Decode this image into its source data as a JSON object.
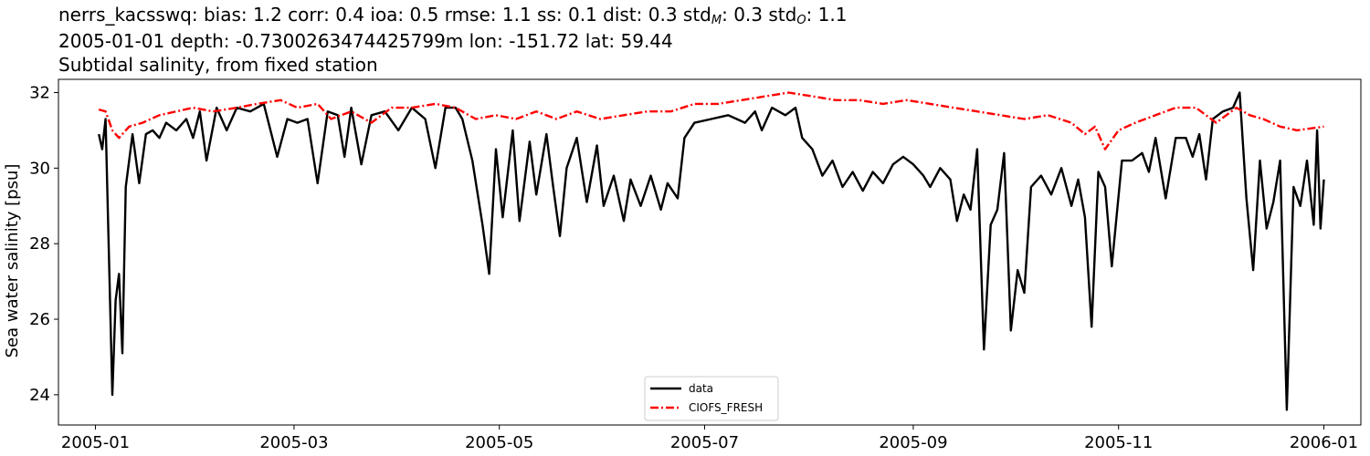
{
  "chart_data": {
    "type": "line",
    "title_lines": {
      "line1": {
        "prefix": "nerrs_kacsswq: bias: 1.2  corr: 0.4  ioa: 0.5  rmse: 1.1  ss: 0.1  dist: 0.3  std",
        "sub1": "M",
        "mid": ": 0.3  std",
        "sub2": "O",
        "suffix": ": 1.1"
      },
      "line2": "2005-01-01 depth: -0.7300263474425799m lon: -151.72 lat: 59.44",
      "line3": "Subtidal salinity, from fixed station"
    },
    "ylabel": "Sea water salinity [psu]",
    "xlabel": "",
    "xlim": [
      "2004-12-21",
      "2006-01-12"
    ],
    "ylim": [
      23.2,
      32.35
    ],
    "xticks": [
      "2005-01",
      "2005-03",
      "2005-05",
      "2005-07",
      "2005-09",
      "2005-11",
      "2006-01"
    ],
    "yticks": [
      24,
      26,
      28,
      30,
      32
    ],
    "grid": false,
    "legend_position": "lower center",
    "series": [
      {
        "name": "data",
        "color": "#000000",
        "style": "solid",
        "points": [
          [
            "2005-01-02",
            30.9
          ],
          [
            "2005-01-03",
            30.5
          ],
          [
            "2005-01-04",
            31.3
          ],
          [
            "2005-01-06",
            24.0
          ],
          [
            "2005-01-07",
            26.5
          ],
          [
            "2005-01-08",
            27.2
          ],
          [
            "2005-01-09",
            25.1
          ],
          [
            "2005-01-10",
            29.5
          ],
          [
            "2005-01-12",
            30.9
          ],
          [
            "2005-01-14",
            29.6
          ],
          [
            "2005-01-16",
            30.9
          ],
          [
            "2005-01-18",
            31.0
          ],
          [
            "2005-01-20",
            30.8
          ],
          [
            "2005-01-22",
            31.2
          ],
          [
            "2005-01-25",
            31.0
          ],
          [
            "2005-01-28",
            31.3
          ],
          [
            "2005-01-30",
            30.8
          ],
          [
            "2005-02-01",
            31.5
          ],
          [
            "2005-02-03",
            30.2
          ],
          [
            "2005-02-06",
            31.6
          ],
          [
            "2005-02-09",
            31.0
          ],
          [
            "2005-02-12",
            31.6
          ],
          [
            "2005-02-16",
            31.5
          ],
          [
            "2005-02-20",
            31.7
          ],
          [
            "2005-02-24",
            30.3
          ],
          [
            "2005-02-27",
            31.3
          ],
          [
            "2005-03-02",
            31.2
          ],
          [
            "2005-03-05",
            31.3
          ],
          [
            "2005-03-08",
            29.6
          ],
          [
            "2005-03-11",
            31.5
          ],
          [
            "2005-03-14",
            31.4
          ],
          [
            "2005-03-16",
            30.3
          ],
          [
            "2005-03-18",
            31.6
          ],
          [
            "2005-03-21",
            30.1
          ],
          [
            "2005-03-24",
            31.4
          ],
          [
            "2005-03-28",
            31.5
          ],
          [
            "2005-04-01",
            31.0
          ],
          [
            "2005-04-05",
            31.6
          ],
          [
            "2005-04-09",
            31.3
          ],
          [
            "2005-04-12",
            30.0
          ],
          [
            "2005-04-15",
            31.6
          ],
          [
            "2005-04-18",
            31.6
          ],
          [
            "2005-04-20",
            31.3
          ],
          [
            "2005-04-23",
            30.2
          ],
          [
            "2005-04-26",
            28.5
          ],
          [
            "2005-04-28",
            27.2
          ],
          [
            "2005-04-30",
            30.5
          ],
          [
            "2005-05-02",
            28.7
          ],
          [
            "2005-05-05",
            31.0
          ],
          [
            "2005-05-07",
            28.6
          ],
          [
            "2005-05-10",
            30.7
          ],
          [
            "2005-05-12",
            29.3
          ],
          [
            "2005-05-15",
            30.9
          ],
          [
            "2005-05-17",
            29.5
          ],
          [
            "2005-05-19",
            28.2
          ],
          [
            "2005-05-21",
            30.0
          ],
          [
            "2005-05-24",
            30.8
          ],
          [
            "2005-05-27",
            29.1
          ],
          [
            "2005-05-30",
            30.6
          ],
          [
            "2005-06-01",
            29.0
          ],
          [
            "2005-06-04",
            29.8
          ],
          [
            "2005-06-07",
            28.6
          ],
          [
            "2005-06-09",
            29.7
          ],
          [
            "2005-06-12",
            29.0
          ],
          [
            "2005-06-15",
            29.8
          ],
          [
            "2005-06-18",
            28.9
          ],
          [
            "2005-06-20",
            29.6
          ],
          [
            "2005-06-23",
            29.2
          ],
          [
            "2005-06-25",
            30.8
          ],
          [
            "2005-06-28",
            31.2
          ],
          [
            "2005-07-03",
            31.3
          ],
          [
            "2005-07-08",
            31.4
          ],
          [
            "2005-07-13",
            31.2
          ],
          [
            "2005-07-16",
            31.5
          ],
          [
            "2005-07-18",
            31.0
          ],
          [
            "2005-07-21",
            31.6
          ],
          [
            "2005-07-25",
            31.4
          ],
          [
            "2005-07-28",
            31.6
          ],
          [
            "2005-07-30",
            30.8
          ],
          [
            "2005-08-02",
            30.5
          ],
          [
            "2005-08-05",
            29.8
          ],
          [
            "2005-08-08",
            30.2
          ],
          [
            "2005-08-11",
            29.5
          ],
          [
            "2005-08-14",
            29.9
          ],
          [
            "2005-08-17",
            29.4
          ],
          [
            "2005-08-20",
            29.9
          ],
          [
            "2005-08-23",
            29.6
          ],
          [
            "2005-08-26",
            30.1
          ],
          [
            "2005-08-29",
            30.3
          ],
          [
            "2005-09-01",
            30.1
          ],
          [
            "2005-09-04",
            29.8
          ],
          [
            "2005-09-06",
            29.5
          ],
          [
            "2005-09-09",
            30.0
          ],
          [
            "2005-09-12",
            29.7
          ],
          [
            "2005-09-14",
            28.6
          ],
          [
            "2005-09-16",
            29.3
          ],
          [
            "2005-09-18",
            28.9
          ],
          [
            "2005-09-20",
            30.5
          ],
          [
            "2005-09-22",
            25.2
          ],
          [
            "2005-09-24",
            28.5
          ],
          [
            "2005-09-26",
            28.9
          ],
          [
            "2005-09-28",
            30.4
          ],
          [
            "2005-09-30",
            25.7
          ],
          [
            "2005-10-02",
            27.3
          ],
          [
            "2005-10-04",
            26.7
          ],
          [
            "2005-10-06",
            29.5
          ],
          [
            "2005-10-09",
            29.8
          ],
          [
            "2005-10-12",
            29.3
          ],
          [
            "2005-10-15",
            30.0
          ],
          [
            "2005-10-18",
            29.0
          ],
          [
            "2005-10-20",
            29.7
          ],
          [
            "2005-10-22",
            28.7
          ],
          [
            "2005-10-24",
            25.8
          ],
          [
            "2005-10-26",
            29.9
          ],
          [
            "2005-10-28",
            29.5
          ],
          [
            "2005-10-30",
            27.4
          ],
          [
            "2005-11-02",
            30.2
          ],
          [
            "2005-11-05",
            30.2
          ],
          [
            "2005-11-08",
            30.4
          ],
          [
            "2005-11-10",
            29.9
          ],
          [
            "2005-11-12",
            30.8
          ],
          [
            "2005-11-15",
            29.2
          ],
          [
            "2005-11-18",
            30.8
          ],
          [
            "2005-11-21",
            30.8
          ],
          [
            "2005-11-23",
            30.3
          ],
          [
            "2005-11-25",
            30.9
          ],
          [
            "2005-11-27",
            29.7
          ],
          [
            "2005-11-29",
            31.3
          ],
          [
            "2005-12-02",
            31.5
          ],
          [
            "2005-12-05",
            31.6
          ],
          [
            "2005-12-07",
            32.0
          ],
          [
            "2005-12-09",
            29.2
          ],
          [
            "2005-12-11",
            27.3
          ],
          [
            "2005-12-13",
            30.2
          ],
          [
            "2005-12-15",
            28.4
          ],
          [
            "2005-12-17",
            29.1
          ],
          [
            "2005-12-19",
            30.2
          ],
          [
            "2005-12-21",
            23.6
          ],
          [
            "2005-12-23",
            29.5
          ],
          [
            "2005-12-25",
            29.0
          ],
          [
            "2005-12-27",
            30.2
          ],
          [
            "2005-12-29",
            28.5
          ],
          [
            "2005-12-30",
            31.0
          ],
          [
            "2005-12-31",
            28.4
          ],
          [
            "2006-01-01",
            29.7
          ]
        ]
      },
      {
        "name": "CIOFS_FRESH",
        "color": "#ff0000",
        "style": "dashdot",
        "points": [
          [
            "2005-01-02",
            31.55
          ],
          [
            "2005-01-04",
            31.5
          ],
          [
            "2005-01-06",
            31.0
          ],
          [
            "2005-01-08",
            30.8
          ],
          [
            "2005-01-11",
            31.1
          ],
          [
            "2005-01-15",
            31.2
          ],
          [
            "2005-01-20",
            31.4
          ],
          [
            "2005-01-25",
            31.5
          ],
          [
            "2005-01-30",
            31.6
          ],
          [
            "2005-02-05",
            31.5
          ],
          [
            "2005-02-12",
            31.6
          ],
          [
            "2005-02-18",
            31.7
          ],
          [
            "2005-02-25",
            31.8
          ],
          [
            "2005-03-02",
            31.6
          ],
          [
            "2005-03-08",
            31.7
          ],
          [
            "2005-03-12",
            31.3
          ],
          [
            "2005-03-18",
            31.5
          ],
          [
            "2005-03-24",
            31.2
          ],
          [
            "2005-03-30",
            31.6
          ],
          [
            "2005-04-05",
            31.6
          ],
          [
            "2005-04-12",
            31.7
          ],
          [
            "2005-04-18",
            31.6
          ],
          [
            "2005-04-24",
            31.3
          ],
          [
            "2005-04-30",
            31.4
          ],
          [
            "2005-05-06",
            31.3
          ],
          [
            "2005-05-12",
            31.5
          ],
          [
            "2005-05-18",
            31.3
          ],
          [
            "2005-05-24",
            31.5
          ],
          [
            "2005-05-31",
            31.3
          ],
          [
            "2005-06-07",
            31.4
          ],
          [
            "2005-06-14",
            31.5
          ],
          [
            "2005-06-21",
            31.5
          ],
          [
            "2005-06-28",
            31.7
          ],
          [
            "2005-07-05",
            31.7
          ],
          [
            "2005-07-12",
            31.8
          ],
          [
            "2005-07-19",
            31.9
          ],
          [
            "2005-07-26",
            32.0
          ],
          [
            "2005-08-02",
            31.9
          ],
          [
            "2005-08-09",
            31.8
          ],
          [
            "2005-08-16",
            31.8
          ],
          [
            "2005-08-23",
            31.7
          ],
          [
            "2005-08-30",
            31.8
          ],
          [
            "2005-09-06",
            31.7
          ],
          [
            "2005-09-13",
            31.6
          ],
          [
            "2005-09-20",
            31.5
          ],
          [
            "2005-09-27",
            31.4
          ],
          [
            "2005-10-04",
            31.3
          ],
          [
            "2005-10-11",
            31.4
          ],
          [
            "2005-10-18",
            31.2
          ],
          [
            "2005-10-22",
            30.9
          ],
          [
            "2005-10-25",
            31.1
          ],
          [
            "2005-10-28",
            30.5
          ],
          [
            "2005-11-01",
            31.0
          ],
          [
            "2005-11-06",
            31.2
          ],
          [
            "2005-11-12",
            31.4
          ],
          [
            "2005-11-18",
            31.6
          ],
          [
            "2005-11-24",
            31.6
          ],
          [
            "2005-11-30",
            31.2
          ],
          [
            "2005-12-06",
            31.6
          ],
          [
            "2005-12-10",
            31.4
          ],
          [
            "2005-12-14",
            31.3
          ],
          [
            "2005-12-19",
            31.1
          ],
          [
            "2005-12-24",
            31.0
          ],
          [
            "2006-01-01",
            31.1
          ]
        ]
      }
    ]
  }
}
